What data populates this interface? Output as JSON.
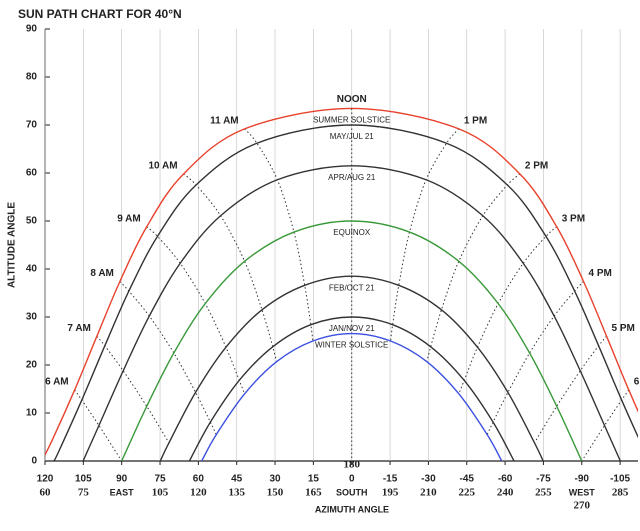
{
  "chart_data": {
    "type": "line",
    "title": "SUN PATH CHART FOR 40°N",
    "ylabel": "ALTITUDE ANGLE",
    "xlabel": "AZIMUTH ANGLE",
    "noon_label": "NOON",
    "xlim": [
      120,
      -112
    ],
    "ylim": [
      0,
      90
    ],
    "yticks": [
      0,
      10,
      20,
      30,
      40,
      50,
      60,
      70,
      80,
      90
    ],
    "xticks": [
      120,
      105,
      90,
      75,
      60,
      45,
      30,
      15,
      0,
      -15,
      -30,
      -45,
      -60,
      -75,
      -90,
      -105
    ],
    "grid": true,
    "compass": [
      {
        "value": 90,
        "label": "EAST"
      },
      {
        "value": 0,
        "label": "SOUTH"
      },
      {
        "value": -90,
        "label": "WEST"
      }
    ],
    "bearing_color": "#8b1a3a",
    "bearing_ticks": [
      {
        "value": 120,
        "label": "60"
      },
      {
        "value": 105,
        "label": "75"
      },
      {
        "value": 75,
        "label": "105"
      },
      {
        "value": 60,
        "label": "120"
      },
      {
        "value": 45,
        "label": "135"
      },
      {
        "value": 30,
        "label": "150"
      },
      {
        "value": 15,
        "label": "165"
      },
      {
        "value": 0,
        "label": "180"
      },
      {
        "value": -15,
        "label": "195"
      },
      {
        "value": -30,
        "label": "210"
      },
      {
        "value": -45,
        "label": "225"
      },
      {
        "value": -60,
        "label": "240"
      },
      {
        "value": -75,
        "label": "255"
      },
      {
        "value": -90,
        "label": "270"
      },
      {
        "value": -105,
        "label": "285"
      }
    ],
    "series": [
      {
        "name": "SUMMER SOLSTICE",
        "color": "#e8412c",
        "x": [
          121.3,
          117.3,
          108.4,
          99.7,
          90.7,
          80.2,
          65.8,
          41.9,
          0,
          -41.9,
          -65.8,
          -80.2,
          -90.7,
          -99.7,
          -108.4,
          -117.3,
          -121.3
        ],
        "values": [
          0,
          4.2,
          14.8,
          26.0,
          37.4,
          48.8,
          59.8,
          69.2,
          73.45,
          69.2,
          59.8,
          48.8,
          37.4,
          26.0,
          14.8,
          4.2,
          0
        ]
      },
      {
        "name": "MAY/JUL 21",
        "color": "#333333",
        "x": [
          116.5,
          114.7,
          105.6,
          96.6,
          87.2,
          76.0,
          60.9,
          37.1,
          0,
          -37.1,
          -60.9,
          -76.0,
          -87.2,
          -96.6,
          -105.6,
          -114.7,
          -116.5
        ],
        "values": [
          0,
          1.9,
          12.7,
          24.0,
          35.4,
          46.8,
          57.5,
          66.2,
          70,
          66.2,
          57.5,
          46.8,
          35.4,
          24.0,
          12.7,
          1.9,
          0
        ]
      },
      {
        "name": "APR/AUG 21",
        "color": "#333333",
        "x": [
          105.1,
          98.9,
          89.4,
          79.2,
          67.1,
          51.3,
          29.1,
          0,
          -29.1,
          -51.3,
          -67.1,
          -79.2,
          -89.4,
          -98.9,
          -105.1
        ],
        "values": [
          0,
          7.4,
          18.8,
          30.2,
          41.2,
          51.1,
          58.6,
          61.5,
          58.6,
          51.1,
          41.2,
          30.2,
          18.8,
          7.4,
          0
        ]
      },
      {
        "name": "EQUINOX",
        "color": "#3a9a3a",
        "x": [
          90,
          80.2,
          69.6,
          57.3,
          41.9,
          22.6,
          0,
          -22.6,
          -41.9,
          -57.3,
          -69.6,
          -80.2,
          -90
        ],
        "values": [
          0,
          11.4,
          22.5,
          32.8,
          41.6,
          47.7,
          50,
          47.7,
          41.6,
          32.8,
          22.5,
          11.4,
          0
        ]
      },
      {
        "name": "FEB/OCT 21",
        "color": "#333333",
        "x": [
          74.9,
          71.5,
          61.1,
          49.2,
          35.1,
          18.4,
          0,
          -18.4,
          -35.1,
          -49.2,
          -61.1,
          -71.5,
          -74.9
        ],
        "values": [
          0,
          3.8,
          14.3,
          23.7,
          31.5,
          36.6,
          38.5,
          36.6,
          31.5,
          23.7,
          14.3,
          3.8,
          0
        ]
      },
      {
        "name": "JAN/NOV 21",
        "color": "#333333",
        "x": [
          63.5,
          55.3,
          44.0,
          30.9,
          16.0,
          0,
          -16.0,
          -30.9,
          -44.0,
          -55.3,
          -63.5
        ],
        "values": [
          0,
          8.1,
          16.8,
          23.8,
          28.4,
          30,
          28.4,
          23.8,
          16.8,
          8.1,
          0
        ]
      },
      {
        "name": "WINTER SOLSTICE",
        "color": "#3b4fe0",
        "x": [
          58.7,
          53.0,
          41.9,
          29.4,
          15.2,
          0,
          -15.2,
          -29.4,
          -41.9,
          -53.0,
          -58.7
        ],
        "values": [
          0,
          5.5,
          14.0,
          20.7,
          25.0,
          26.55,
          25.0,
          20.7,
          14.0,
          5.5,
          0
        ]
      }
    ],
    "hour_lines": [
      {
        "name": "6 AM",
        "x": [
          108.4,
          105.6,
          98.9,
          90
        ],
        "values": [
          14.8,
          12.7,
          7.4,
          0
        ]
      },
      {
        "name": "7 AM",
        "x": [
          99.7,
          96.6,
          89.4,
          80.2,
          71.5
        ],
        "values": [
          26.0,
          24.0,
          18.8,
          11.4,
          3.8
        ]
      },
      {
        "name": "8 AM",
        "x": [
          90.7,
          87.2,
          79.2,
          69.6,
          61.1,
          55.3,
          53.0
        ],
        "values": [
          37.4,
          35.4,
          30.2,
          22.5,
          14.3,
          8.1,
          5.5
        ]
      },
      {
        "name": "9 AM",
        "x": [
          80.2,
          76.0,
          67.1,
          57.3,
          49.2,
          44.0,
          41.9
        ],
        "values": [
          48.8,
          46.8,
          41.2,
          32.8,
          23.7,
          16.8,
          14.0
        ]
      },
      {
        "name": "10 AM",
        "x": [
          65.8,
          60.9,
          51.3,
          41.9,
          35.1,
          30.9,
          29.4
        ],
        "values": [
          59.8,
          57.5,
          51.1,
          41.6,
          31.5,
          23.8,
          20.7
        ]
      },
      {
        "name": "11 AM",
        "x": [
          41.9,
          37.1,
          29.1,
          22.6,
          18.4,
          16.0,
          15.2
        ],
        "values": [
          69.2,
          66.2,
          58.6,
          47.7,
          36.6,
          28.4,
          25.0
        ]
      },
      {
        "name": "1 PM",
        "x": [
          -41.9,
          -37.1,
          -29.1,
          -22.6,
          -18.4,
          -16.0,
          -15.2
        ],
        "values": [
          69.2,
          66.2,
          58.6,
          47.7,
          36.6,
          28.4,
          25.0
        ]
      },
      {
        "name": "2 PM",
        "x": [
          -65.8,
          -60.9,
          -51.3,
          -41.9,
          -35.1,
          -30.9,
          -29.4
        ],
        "values": [
          59.8,
          57.5,
          51.1,
          41.6,
          31.5,
          23.8,
          20.7
        ]
      },
      {
        "name": "3 PM",
        "x": [
          -80.2,
          -76.0,
          -67.1,
          -57.3,
          -49.2,
          -44.0,
          -41.9
        ],
        "values": [
          48.8,
          46.8,
          41.2,
          32.8,
          23.7,
          16.8,
          14.0
        ]
      },
      {
        "name": "4 PM",
        "x": [
          -90.7,
          -87.2,
          -79.2,
          -69.6,
          -61.1,
          -55.3,
          -53.0
        ],
        "values": [
          37.4,
          35.4,
          30.2,
          22.5,
          14.3,
          8.1,
          5.5
        ]
      },
      {
        "name": "5 PM",
        "x": [
          -99.7,
          -96.6,
          -89.4,
          -80.2,
          -71.5
        ],
        "values": [
          26.0,
          24.0,
          18.8,
          11.4,
          3.8
        ]
      },
      {
        "name": "6",
        "x": [
          -108.4,
          -105.6,
          -98.9,
          -90
        ],
        "values": [
          14.8,
          12.7,
          7.4,
          0
        ]
      }
    ]
  }
}
